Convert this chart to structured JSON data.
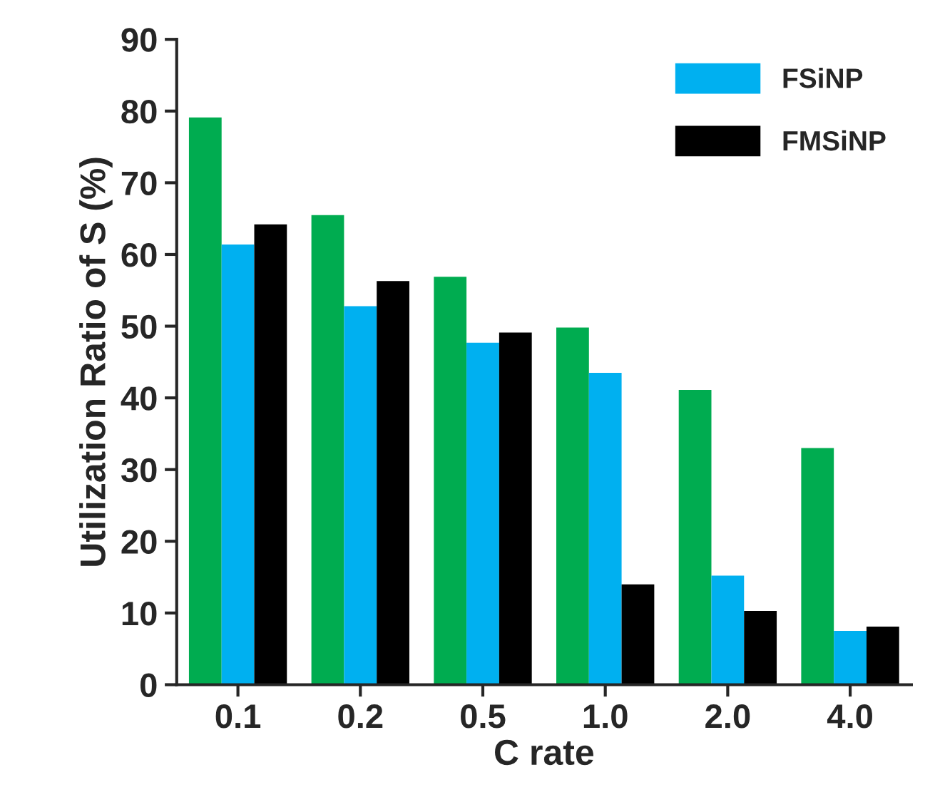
{
  "chart_data": {
    "type": "bar",
    "xlabel": "C rate",
    "ylabel": "Utilization Ratio of S (%)",
    "categories": [
      "0.1",
      "0.2",
      "0.5",
      "1.0",
      "2.0",
      "4.0"
    ],
    "series": [
      {
        "color": "#00ac50",
        "values": [
          79.1,
          65.5,
          56.9,
          49.8,
          41.1,
          33.0
        ]
      },
      {
        "name": "FSiNP",
        "color": "#00b0f0",
        "values": [
          61.4,
          52.8,
          47.7,
          43.5,
          15.2,
          7.5
        ]
      },
      {
        "name": "FMSiNP",
        "color": "#000000",
        "values": [
          64.2,
          56.3,
          49.1,
          14.0,
          10.3,
          8.1
        ]
      }
    ],
    "ylim": [
      0,
      90
    ],
    "yticks": [
      0,
      10,
      20,
      30,
      40,
      50,
      60,
      70,
      80,
      90
    ],
    "grid": false,
    "legend": "top right"
  }
}
